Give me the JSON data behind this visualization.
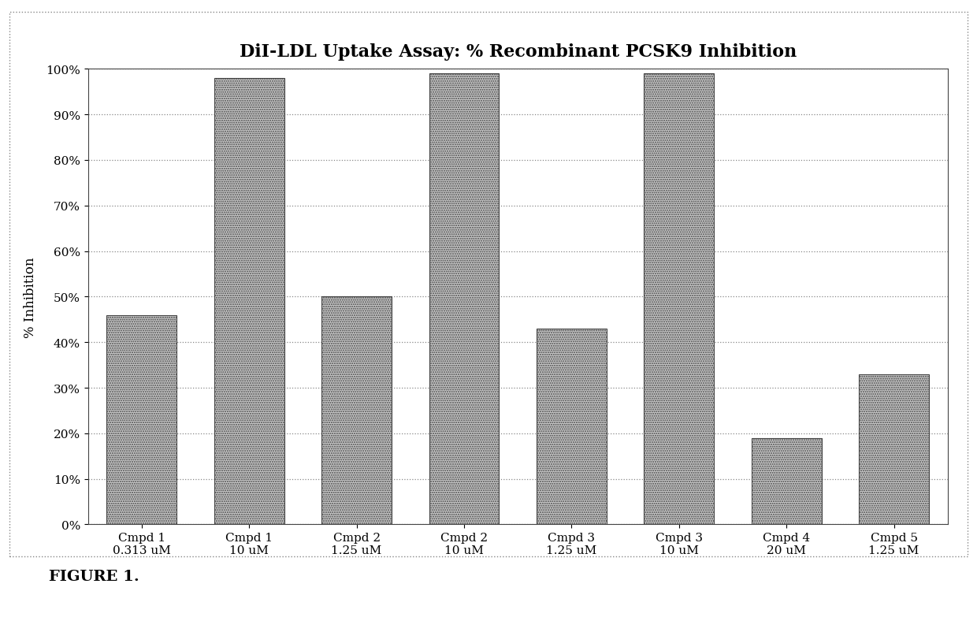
{
  "title": "DiI-LDL Uptake Assay: % Recombinant PCSK9 Inhibition",
  "ylabel": "% Inhibition",
  "categories": [
    "Cmpd 1\n0.313 uM",
    "Cmpd 1\n10 uM",
    "Cmpd 2\n1.25 uM",
    "Cmpd 2\n10 uM",
    "Cmpd 3\n1.25 uM",
    "Cmpd 3\n10 uM",
    "Cmpd 4\n20 uM",
    "Cmpd 5\n1.25 uM"
  ],
  "values": [
    0.46,
    0.98,
    0.5,
    0.99,
    0.43,
    0.99,
    0.19,
    0.33
  ],
  "ylim": [
    0.0,
    1.0
  ],
  "yticks": [
    0.0,
    0.1,
    0.2,
    0.3,
    0.4,
    0.5,
    0.6,
    0.7,
    0.8,
    0.9,
    1.0
  ],
  "ytick_labels": [
    "0%",
    "10%",
    "20%",
    "30%",
    "40%",
    "50%",
    "60%",
    "70%",
    "80%",
    "90%",
    "100%"
  ],
  "bar_color": "#c8c8c8",
  "bar_edge_color": "#444444",
  "background_color": "#ffffff",
  "figure_caption": "FIGURE 1.",
  "title_fontsize": 16,
  "label_fontsize": 12,
  "tick_fontsize": 11,
  "caption_fontsize": 14,
  "bar_width": 0.65
}
